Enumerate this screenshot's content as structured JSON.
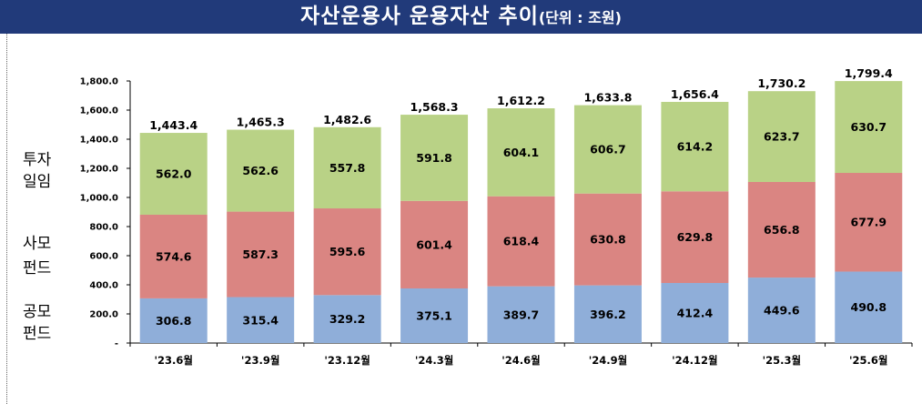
{
  "title": {
    "main": "자산운용사 운용자산 추이",
    "unit": "(단위 : 조원)"
  },
  "side_labels": {
    "investment": [
      "투자",
      "일임"
    ],
    "private_fund": [
      "사모",
      "펀드"
    ],
    "public_fund": [
      "공모",
      "펀드"
    ]
  },
  "chart_data": {
    "type": "bar",
    "stacked": true,
    "categories": [
      "'23.6월",
      "'23.9월",
      "'23.12월",
      "'24.3월",
      "'24.6월",
      "'24.9월",
      "'24.12월",
      "'25.3월",
      "'25.6월"
    ],
    "series": [
      {
        "name": "공모펀드",
        "color": "#8faed9",
        "values": [
          306.8,
          315.4,
          329.2,
          375.1,
          389.7,
          396.2,
          412.4,
          449.6,
          490.8
        ]
      },
      {
        "name": "사모펀드",
        "color": "#da8582",
        "values": [
          574.6,
          587.3,
          595.6,
          601.4,
          618.4,
          630.8,
          629.8,
          656.8,
          677.9
        ]
      },
      {
        "name": "투자일임",
        "color": "#b9d286",
        "values": [
          562.0,
          562.6,
          557.8,
          591.8,
          604.1,
          606.7,
          614.2,
          623.7,
          630.7
        ]
      }
    ],
    "totals": [
      1443.4,
      1465.3,
      1482.6,
      1568.3,
      1612.2,
      1633.8,
      1656.4,
      1730.2,
      1799.4
    ],
    "y_ticks": [
      "-",
      "200.0",
      "400.0",
      "600.0",
      "800.0",
      "1,000.0",
      "1,200.0",
      "1,400.0",
      "1,600.0",
      "1,800.0"
    ],
    "ylim": [
      0,
      1800
    ],
    "grid": false,
    "legend": "none"
  }
}
